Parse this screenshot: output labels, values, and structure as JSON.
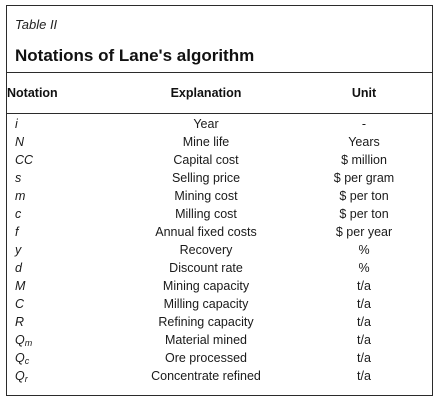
{
  "table": {
    "label": "Table II",
    "title": "Notations of Lane's algorithm",
    "headers": {
      "notation": "Notation",
      "explanation": "Explanation",
      "unit": "Unit"
    },
    "rows": [
      {
        "notation": "i",
        "sub": "",
        "explanation": "Year",
        "unit": "-"
      },
      {
        "notation": "N",
        "sub": "",
        "explanation": "Mine life",
        "unit": "Years"
      },
      {
        "notation": "CC",
        "sub": "",
        "explanation": "Capital cost",
        "unit": "$ million"
      },
      {
        "notation": "s",
        "sub": "",
        "explanation": "Selling price",
        "unit": "$ per gram"
      },
      {
        "notation": "m",
        "sub": "",
        "explanation": "Mining cost",
        "unit": "$ per ton"
      },
      {
        "notation": "c",
        "sub": "",
        "explanation": "Milling cost",
        "unit": "$ per ton"
      },
      {
        "notation": "f",
        "sub": "",
        "explanation": "Annual fixed costs",
        "unit": "$ per year"
      },
      {
        "notation": "y",
        "sub": "",
        "explanation": "Recovery",
        "unit": "%"
      },
      {
        "notation": "d",
        "sub": "",
        "explanation": "Discount rate",
        "unit": "%"
      },
      {
        "notation": "M",
        "sub": "",
        "explanation": "Mining capacity",
        "unit": "t/a"
      },
      {
        "notation": "C",
        "sub": "",
        "explanation": "Milling capacity",
        "unit": "t/a"
      },
      {
        "notation": "R",
        "sub": "",
        "explanation": "Refining capacity",
        "unit": "t/a"
      },
      {
        "notation": "Q",
        "sub": "m",
        "explanation": "Material mined",
        "unit": "t/a"
      },
      {
        "notation": "Q",
        "sub": "c",
        "explanation": "Ore processed",
        "unit": "t/a"
      },
      {
        "notation": "Q",
        "sub": "r",
        "explanation": "Concentrate refined",
        "unit": "t/a"
      }
    ]
  }
}
